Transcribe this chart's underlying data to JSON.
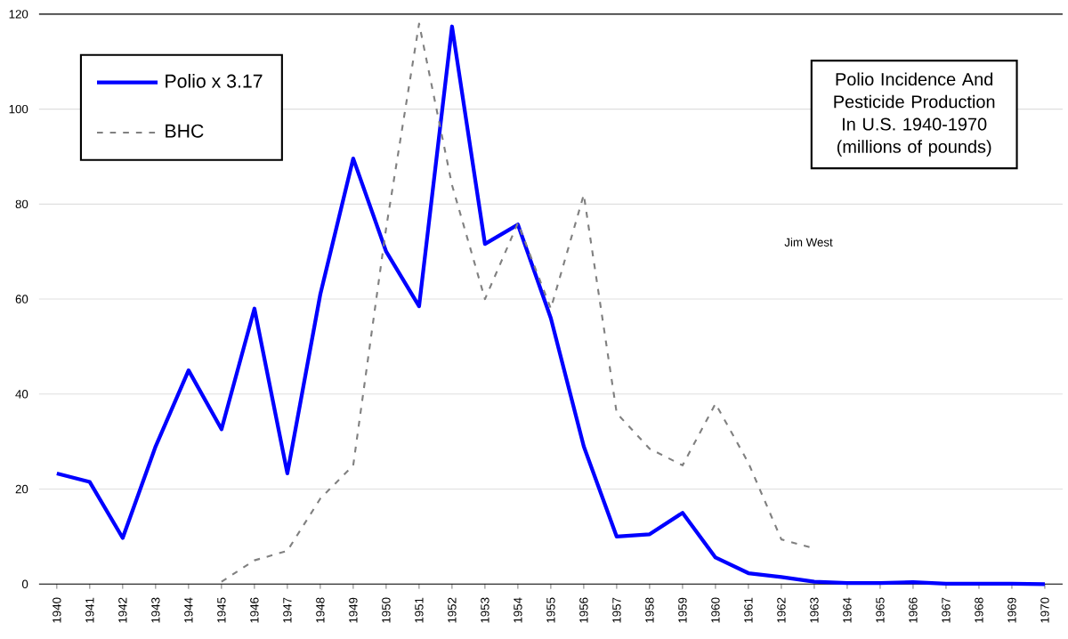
{
  "chart_data": {
    "type": "line",
    "title": "Polio Incidence And Pesticide Production In U.S. 1940-1970",
    "subtitle": "(millions of pounds)",
    "categories": [
      "1940",
      "1941",
      "1942",
      "1943",
      "1944",
      "1945",
      "1946",
      "1947",
      "1948",
      "1949",
      "1950",
      "1951",
      "1952",
      "1953",
      "1954",
      "1955",
      "1956",
      "1957",
      "1958",
      "1959",
      "1960",
      "1961",
      "1962",
      "1963",
      "1964",
      "1965",
      "1966",
      "1967",
      "1968",
      "1969",
      "1970"
    ],
    "series": [
      {
        "name": "Polio x 3.17",
        "color": "#0000ff",
        "line_style": "solid",
        "values": [
          23.3,
          21.5,
          9.7,
          29,
          45,
          32.6,
          58,
          23.3,
          61,
          89.6,
          70,
          58.5,
          117.4,
          71.6,
          75.7,
          56,
          29,
          10,
          10.5,
          15,
          5.6,
          2.3,
          1.5,
          0.5,
          0.2,
          0.2,
          0.4,
          0.1,
          0.1,
          0.1,
          0
        ]
      },
      {
        "name": "BHC",
        "color": "#808080",
        "line_style": "dashed",
        "values": [
          null,
          null,
          null,
          null,
          null,
          0.5,
          5,
          7,
          18,
          25,
          75,
          118,
          84,
          60,
          76,
          58,
          82,
          36,
          28.5,
          25,
          38,
          25.5,
          9.4,
          7.5,
          null,
          null,
          null,
          null,
          null,
          null,
          null
        ]
      }
    ],
    "ylim": [
      0,
      120
    ],
    "yticks": [
      0,
      20,
      40,
      60,
      80,
      100,
      120
    ],
    "grid": "y",
    "legend": "top left",
    "marker": "none",
    "annotations": [
      "Jim West"
    ]
  }
}
